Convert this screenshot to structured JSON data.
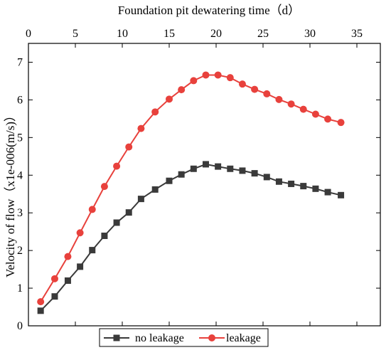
{
  "chart_data": {
    "type": "line",
    "title": "",
    "xlabel": "Foundation pit dewatering time（d）",
    "ylabel": "Velocity of flow（x1e-006(m/s)）",
    "xlim": [
      0,
      37.5
    ],
    "ylim": [
      0,
      7.5
    ],
    "xticks": [
      0,
      5,
      10,
      15,
      20,
      25,
      30,
      35
    ],
    "yticks": [
      0,
      1,
      2,
      3,
      4,
      5,
      6,
      7
    ],
    "grid": false,
    "legend_position": "bottom",
    "series": [
      {
        "name": "no leakage",
        "color": "#3a3a3a",
        "marker": "square",
        "x": [
          1.3,
          2.8,
          4.2,
          5.5,
          6.8,
          8.1,
          9.4,
          10.7,
          12.0,
          13.5,
          15.0,
          16.3,
          17.6,
          18.9,
          20.2,
          21.5,
          22.8,
          24.1,
          25.4,
          26.7,
          28.0,
          29.3,
          30.6,
          31.9,
          33.3
        ],
        "y": [
          0.4,
          0.78,
          1.2,
          1.57,
          2.01,
          2.39,
          2.74,
          3.01,
          3.37,
          3.62,
          3.85,
          4.02,
          4.17,
          4.29,
          4.23,
          4.17,
          4.12,
          4.05,
          3.95,
          3.83,
          3.77,
          3.71,
          3.64,
          3.55,
          3.47
        ]
      },
      {
        "name": "leakage",
        "color": "#e8413c",
        "marker": "circle",
        "x": [
          1.3,
          2.8,
          4.2,
          5.5,
          6.8,
          8.1,
          9.4,
          10.7,
          12.0,
          13.5,
          15.0,
          16.3,
          17.6,
          18.9,
          20.2,
          21.5,
          22.8,
          24.1,
          25.4,
          26.7,
          28.0,
          29.3,
          30.6,
          31.9,
          33.3
        ],
        "y": [
          0.64,
          1.25,
          1.84,
          2.47,
          3.09,
          3.7,
          4.24,
          4.75,
          5.24,
          5.68,
          6.02,
          6.27,
          6.51,
          6.66,
          6.66,
          6.59,
          6.42,
          6.28,
          6.16,
          6.01,
          5.89,
          5.75,
          5.62,
          5.49,
          5.4
        ]
      }
    ]
  }
}
